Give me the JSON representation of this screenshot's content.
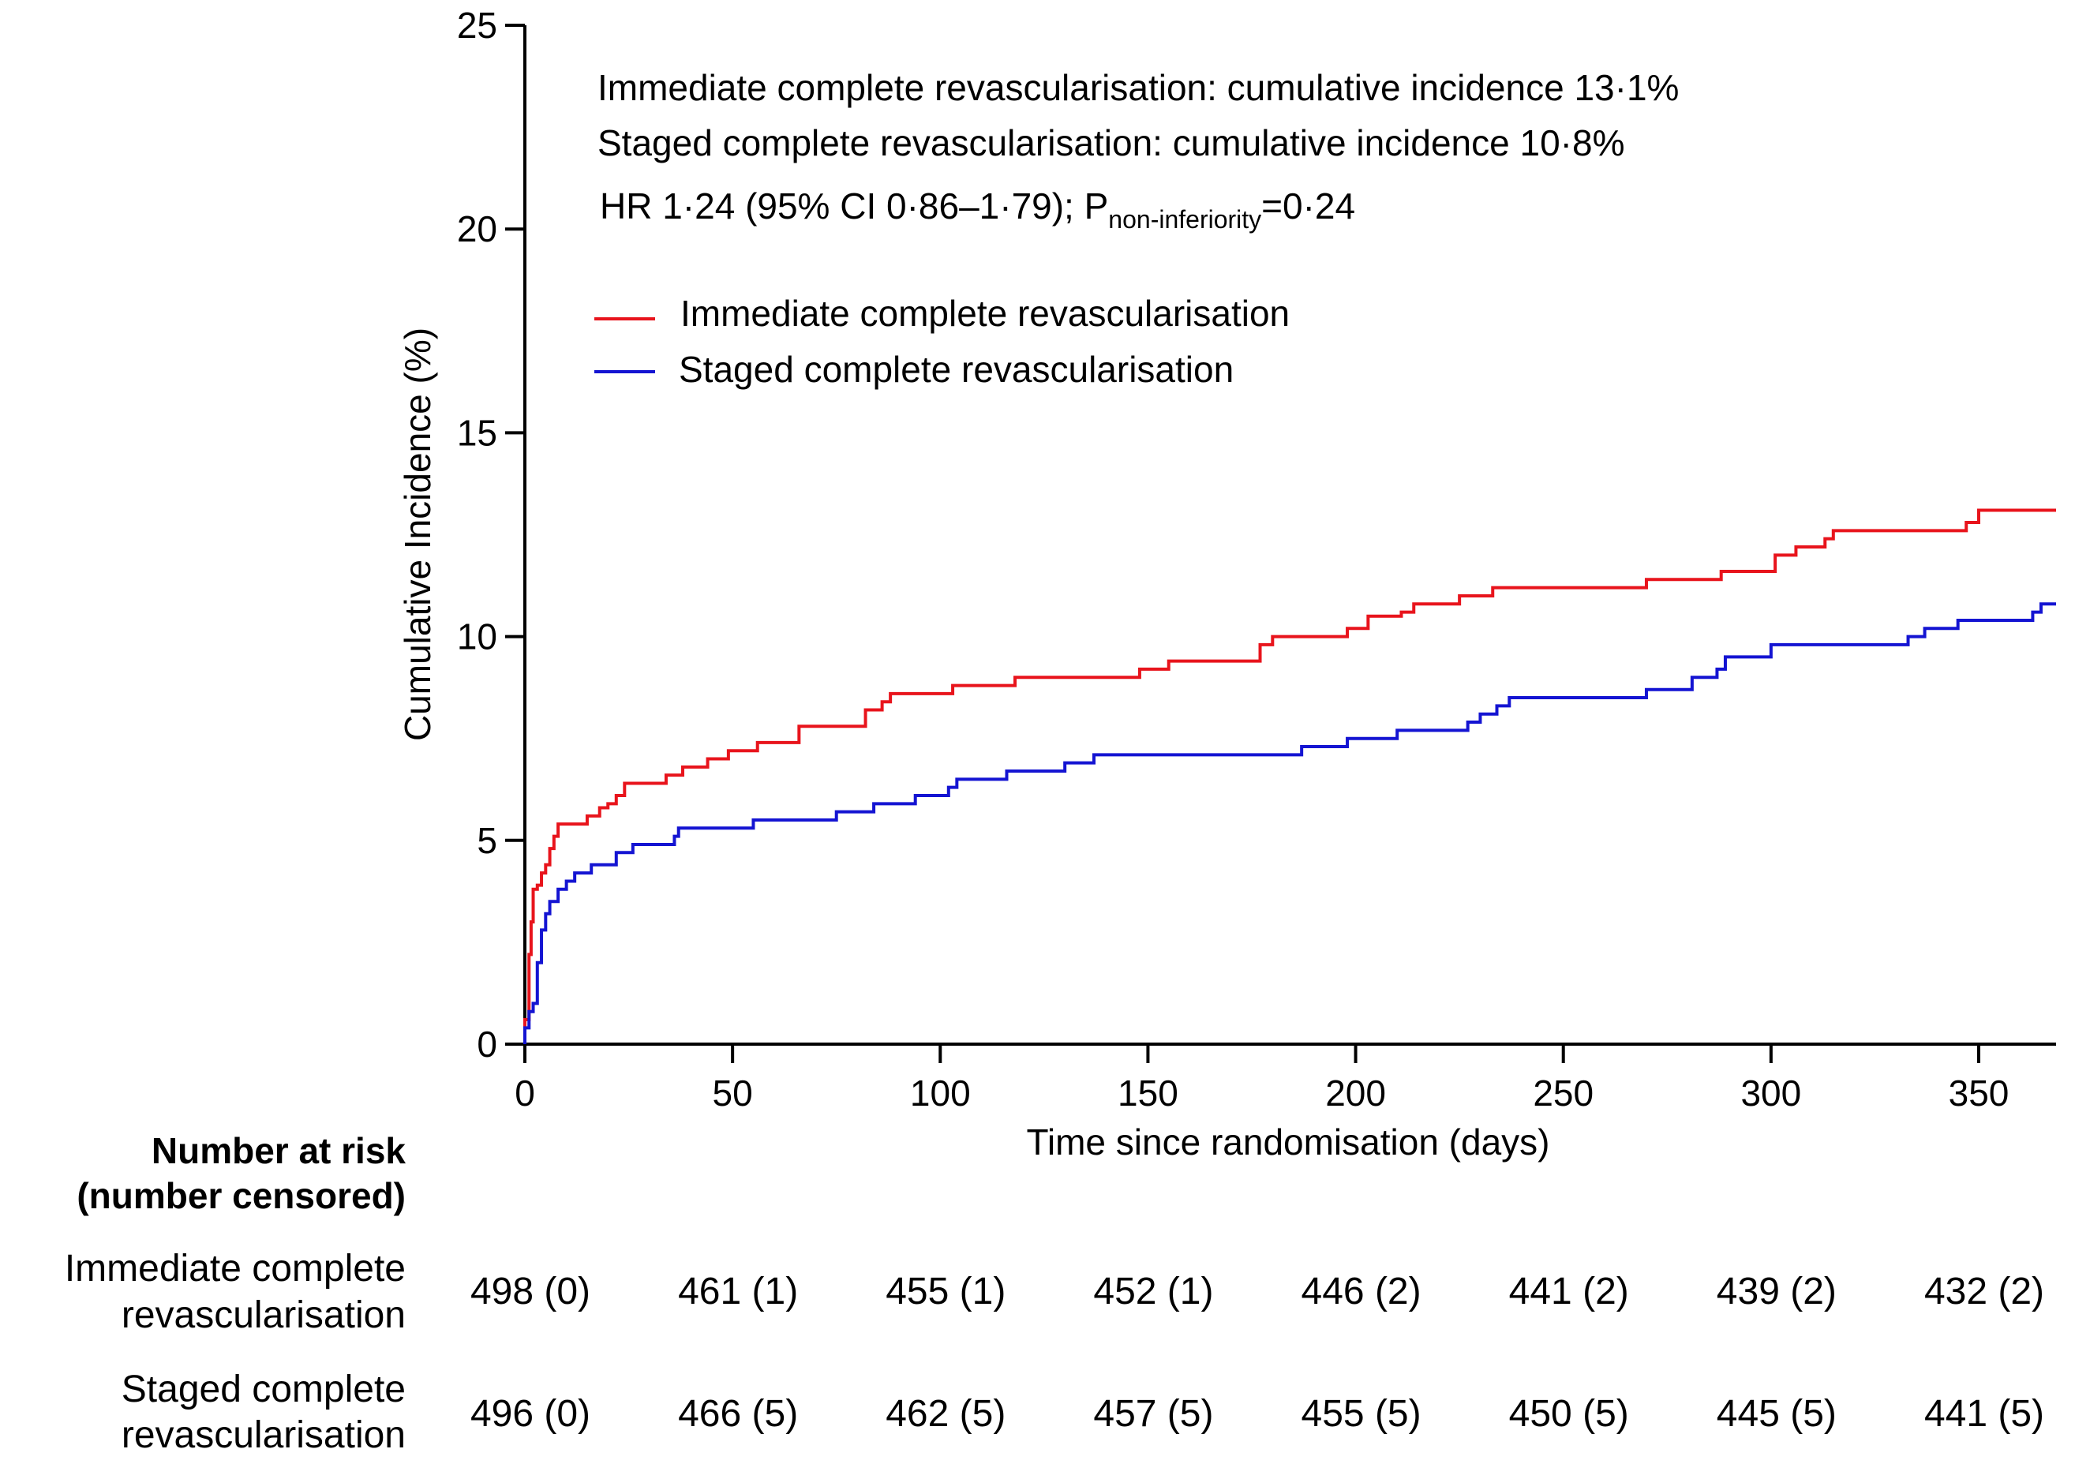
{
  "chart_data": {
    "type": "line",
    "subtype": "cumulative-incidence-step",
    "xlabel": "Time since randomisation (days)",
    "ylabel": "Cumulative Incidence (%)",
    "xlim": [
      0,
      365
    ],
    "ylim": [
      0,
      25
    ],
    "x_ticks": [
      0,
      50,
      100,
      150,
      200,
      250,
      300,
      350
    ],
    "y_ticks": [
      0,
      5,
      10,
      15,
      20,
      25
    ],
    "grid": false,
    "legend_position": "top-left",
    "annotations": {
      "line1": "Immediate complete revascularisation: cumulative incidence 13·1%",
      "line2": "Staged complete revascularisation: cumulative incidence 10·8%",
      "line3_prefix": "HR 1·24 (95% CI 0·86–1·79); P",
      "line3_sub": "non-inferiority",
      "line3_suffix": "=0·24"
    },
    "series": [
      {
        "name": "Immediate complete revascularisation",
        "color": "#e8141c",
        "points": [
          [
            0,
            0.6
          ],
          [
            1,
            2.2
          ],
          [
            1.5,
            3.0
          ],
          [
            2,
            3.8
          ],
          [
            3,
            3.9
          ],
          [
            4,
            4.2
          ],
          [
            5,
            4.4
          ],
          [
            6,
            4.8
          ],
          [
            7,
            5.1
          ],
          [
            8,
            5.4
          ],
          [
            15,
            5.6
          ],
          [
            18,
            5.8
          ],
          [
            20,
            5.9
          ],
          [
            22,
            6.1
          ],
          [
            24,
            6.4
          ],
          [
            34,
            6.6
          ],
          [
            38,
            6.8
          ],
          [
            44,
            7.0
          ],
          [
            49,
            7.2
          ],
          [
            56,
            7.4
          ],
          [
            66,
            7.8
          ],
          [
            82,
            8.2
          ],
          [
            86,
            8.4
          ],
          [
            88,
            8.6
          ],
          [
            103,
            8.8
          ],
          [
            118,
            9.0
          ],
          [
            148,
            9.2
          ],
          [
            155,
            9.4
          ],
          [
            177,
            9.8
          ],
          [
            180,
            10.0
          ],
          [
            198,
            10.2
          ],
          [
            203,
            10.5
          ],
          [
            211,
            10.6
          ],
          [
            214,
            10.8
          ],
          [
            225,
            11.0
          ],
          [
            233,
            11.2
          ],
          [
            270,
            11.4
          ],
          [
            288,
            11.6
          ],
          [
            301,
            12.0
          ],
          [
            306,
            12.2
          ],
          [
            313,
            12.4
          ],
          [
            315,
            12.6
          ],
          [
            347,
            12.8
          ],
          [
            350,
            13.1
          ],
          [
            365,
            13.1
          ]
        ]
      },
      {
        "name": "Staged complete revascularisation",
        "color": "#1414d2",
        "points": [
          [
            0,
            0.4
          ],
          [
            1,
            0.8
          ],
          [
            2,
            1.0
          ],
          [
            3,
            2.0
          ],
          [
            4,
            2.8
          ],
          [
            5,
            3.2
          ],
          [
            6,
            3.5
          ],
          [
            8,
            3.8
          ],
          [
            10,
            4.0
          ],
          [
            12,
            4.2
          ],
          [
            16,
            4.4
          ],
          [
            22,
            4.7
          ],
          [
            26,
            4.9
          ],
          [
            36,
            5.1
          ],
          [
            37,
            5.3
          ],
          [
            55,
            5.5
          ],
          [
            75,
            5.7
          ],
          [
            84,
            5.9
          ],
          [
            94,
            6.1
          ],
          [
            102,
            6.3
          ],
          [
            104,
            6.5
          ],
          [
            116,
            6.7
          ],
          [
            130,
            6.9
          ],
          [
            137,
            7.1
          ],
          [
            187,
            7.3
          ],
          [
            198,
            7.5
          ],
          [
            210,
            7.7
          ],
          [
            227,
            7.9
          ],
          [
            230,
            8.1
          ],
          [
            234,
            8.3
          ],
          [
            237,
            8.5
          ],
          [
            270,
            8.7
          ],
          [
            281,
            9.0
          ],
          [
            287,
            9.2
          ],
          [
            289,
            9.5
          ],
          [
            300,
            9.8
          ],
          [
            333,
            10.0
          ],
          [
            337,
            10.2
          ],
          [
            345,
            10.4
          ],
          [
            363,
            10.6
          ],
          [
            365,
            10.8
          ]
        ]
      }
    ],
    "number_at_risk": {
      "header_line1": "Number at risk",
      "header_line2": "(number censored)",
      "timepoints": [
        0,
        50,
        100,
        150,
        200,
        250,
        300,
        350
      ],
      "rows": [
        {
          "label_line1": "Immediate complete",
          "label_line2": "revascularisation",
          "values": [
            "498 (0)",
            "461 (1)",
            "455 (1)",
            "452 (1)",
            "446 (2)",
            "441 (2)",
            "439 (2)",
            "432 (2)"
          ]
        },
        {
          "label_line1": "Staged complete",
          "label_line2": "revascularisation",
          "values": [
            "496 (0)",
            "466 (5)",
            "462 (5)",
            "457 (5)",
            "455 (5)",
            "450 (5)",
            "445 (5)",
            "441 (5)"
          ]
        }
      ]
    }
  }
}
